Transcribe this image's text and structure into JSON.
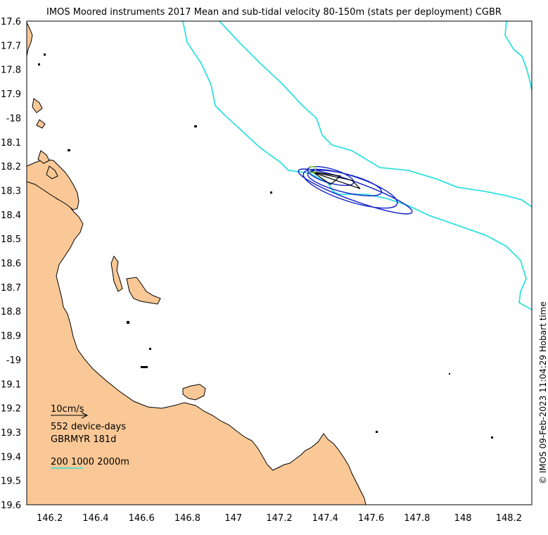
{
  "title": "IMOS Moored instruments 2017 Mean and sub-tidal velocity 80-150m (stats per deployment) CGBR",
  "credit": "© IMOS 09-Feb-2023 11:04:29 Hobart time",
  "axes": {
    "y_labels": [
      "17.6",
      "17.7",
      "17.8",
      "17.9",
      "-18",
      "18.1",
      "18.2",
      "18.3",
      "18.4",
      "18.5",
      "18.6",
      "18.7",
      "18.8",
      "18.9",
      "-19",
      "19.1",
      "19.2",
      "19.3",
      "19.4",
      "19.5",
      "19.6"
    ],
    "x_labels": [
      "146.2",
      "146.4",
      "146.6",
      "146.8",
      "147",
      "147.2",
      "147.4",
      "147.6",
      "147.8",
      "148",
      "148.2"
    ],
    "x_range": [
      146.1,
      148.3
    ],
    "y_range": [
      -17.6,
      -19.6
    ]
  },
  "legend": {
    "scale_label": "10cm/s",
    "device_days": "552 device-days",
    "station": "GBRMYR 181d",
    "isobaths": "200 1000 2000m"
  },
  "colors": {
    "land": "#f9c896",
    "isobath": "#31e0e0",
    "ellipse": "#1020c8",
    "mean_vector": "#000000",
    "mooring": "#80c840"
  }
}
